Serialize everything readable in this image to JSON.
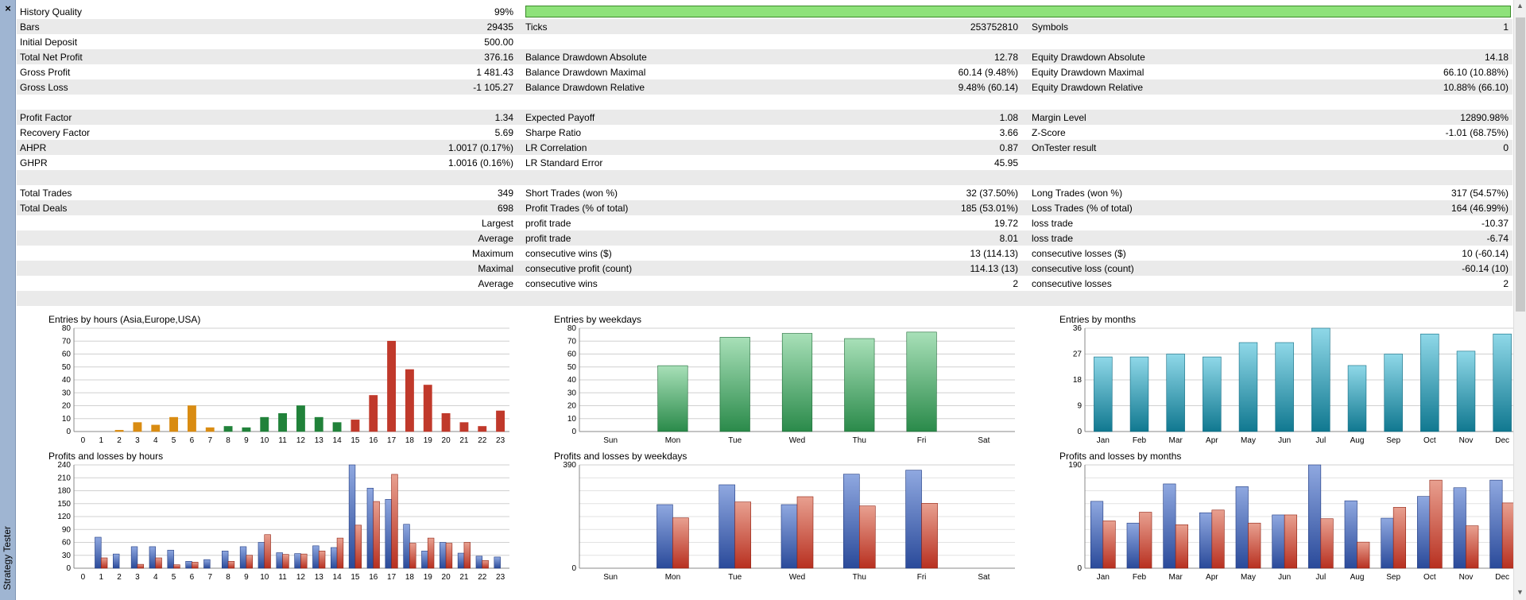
{
  "window": {
    "side_label": "Strategy Tester",
    "close_glyph": "×"
  },
  "stats": {
    "history_quality": {
      "label": "History Quality",
      "value": "99%",
      "percent": 99
    },
    "rows": [
      {
        "y": 24,
        "g": 1,
        "c": [
          [
            "Bars",
            "29435"
          ],
          [
            "Ticks",
            "253752810"
          ],
          [
            "Symbols",
            "1"
          ]
        ]
      },
      {
        "y": 43,
        "g": 0,
        "c": [
          [
            "Initial Deposit",
            "500.00"
          ],
          [
            "",
            ""
          ],
          [
            "",
            ""
          ]
        ]
      },
      {
        "y": 62,
        "g": 1,
        "c": [
          [
            "Total Net Profit",
            "376.16"
          ],
          [
            "Balance Drawdown Absolute",
            "12.78"
          ],
          [
            "Equity Drawdown Absolute",
            "14.18"
          ]
        ]
      },
      {
        "y": 81,
        "g": 0,
        "c": [
          [
            "Gross Profit",
            "1 481.43"
          ],
          [
            "Balance Drawdown Maximal",
            "60.14 (9.48%)"
          ],
          [
            "Equity Drawdown Maximal",
            "66.10 (10.88%)"
          ]
        ]
      },
      {
        "y": 100,
        "g": 1,
        "c": [
          [
            "Gross Loss",
            "-1 105.27"
          ],
          [
            "Balance Drawdown Relative",
            "9.48% (60.14)"
          ],
          [
            "Equity Drawdown Relative",
            "10.88% (66.10)"
          ]
        ]
      },
      {
        "y": 119,
        "g": 0,
        "c": [
          [
            "",
            ""
          ],
          [
            "",
            ""
          ],
          [
            "",
            ""
          ]
        ]
      },
      {
        "y": 138,
        "g": 1,
        "c": [
          [
            "Profit Factor",
            "1.34"
          ],
          [
            "Expected Payoff",
            "1.08"
          ],
          [
            "Margin Level",
            "12890.98%"
          ]
        ]
      },
      {
        "y": 157,
        "g": 0,
        "c": [
          [
            "Recovery Factor",
            "5.69"
          ],
          [
            "Sharpe Ratio",
            "3.66"
          ],
          [
            "Z-Score",
            "-1.01 (68.75%)"
          ]
        ]
      },
      {
        "y": 176,
        "g": 1,
        "c": [
          [
            "AHPR",
            "1.0017 (0.17%)"
          ],
          [
            "LR Correlation",
            "0.87"
          ],
          [
            "OnTester result",
            "0"
          ]
        ]
      },
      {
        "y": 195,
        "g": 0,
        "c": [
          [
            "GHPR",
            "1.0016 (0.16%)"
          ],
          [
            "LR Standard Error",
            "45.95"
          ],
          [
            "",
            ""
          ]
        ]
      },
      {
        "y": 214,
        "g": 1,
        "c": [
          [
            "",
            ""
          ],
          [
            "",
            ""
          ],
          [
            "",
            ""
          ]
        ]
      },
      {
        "y": 233,
        "g": 0,
        "c": [
          [
            "Total Trades",
            "349"
          ],
          [
            "Short Trades (won %)",
            "32 (37.50%)"
          ],
          [
            "Long Trades (won %)",
            "317 (54.57%)"
          ]
        ]
      },
      {
        "y": 252,
        "g": 1,
        "c": [
          [
            "Total Deals",
            "698"
          ],
          [
            "Profit Trades (% of total)",
            "185 (53.01%)"
          ],
          [
            "Loss Trades (% of total)",
            "164 (46.99%)"
          ]
        ]
      },
      {
        "y": 271,
        "g": 0,
        "r": "Largest",
        "c": [
          [
            "",
            ""
          ],
          [
            "profit trade",
            "19.72"
          ],
          [
            "loss trade",
            "-10.37"
          ]
        ]
      },
      {
        "y": 290,
        "g": 1,
        "r": "Average",
        "c": [
          [
            "",
            ""
          ],
          [
            "profit trade",
            "8.01"
          ],
          [
            "loss trade",
            "-6.74"
          ]
        ]
      },
      {
        "y": 309,
        "g": 0,
        "r": "Maximum",
        "c": [
          [
            "",
            ""
          ],
          [
            "consecutive wins ($)",
            "13 (114.13)"
          ],
          [
            "consecutive losses ($)",
            "10 (-60.14)"
          ]
        ]
      },
      {
        "y": 328,
        "g": 1,
        "r": "Maximal",
        "c": [
          [
            "",
            ""
          ],
          [
            "consecutive profit (count)",
            "114.13 (13)"
          ],
          [
            "consecutive loss (count)",
            "-60.14 (10)"
          ]
        ]
      },
      {
        "y": 347,
        "g": 0,
        "r": "Average",
        "c": [
          [
            "",
            ""
          ],
          [
            "consecutive wins",
            "2"
          ],
          [
            "consecutive losses",
            "2"
          ]
        ]
      },
      {
        "y": 366,
        "g": 1,
        "c": [
          [
            "",
            ""
          ],
          [
            "",
            ""
          ],
          [
            "",
            ""
          ]
        ]
      }
    ]
  },
  "colors": {
    "orange": "#d98c12",
    "green": "#21823a",
    "red": "#c0392b",
    "blue": "#3a5aa8",
    "teal": "#1b8ca6",
    "lightgreen": "#3aa661"
  },
  "chart_data": [
    {
      "name": "hours-entries",
      "type": "bar",
      "title": "Entries by hours (Asia,Europe,USA)",
      "categories": [
        "0",
        "1",
        "2",
        "3",
        "4",
        "5",
        "6",
        "7",
        "8",
        "9",
        "10",
        "11",
        "12",
        "13",
        "14",
        "15",
        "16",
        "17",
        "18",
        "19",
        "20",
        "21",
        "22",
        "23"
      ],
      "values": [
        0,
        0,
        1,
        7,
        5,
        11,
        20,
        3,
        4,
        3,
        11,
        14,
        20,
        11,
        7,
        9,
        28,
        70,
        48,
        36,
        14,
        7,
        4,
        16
      ],
      "yticks": [
        "0",
        "10",
        "20",
        "30",
        "40",
        "50",
        "60",
        "70",
        "80"
      ],
      "ylim": [
        0,
        80
      ],
      "color_by_group": [
        "orange",
        "orange",
        "orange",
        "orange",
        "orange",
        "orange",
        "orange",
        "orange",
        "green",
        "green",
        "green",
        "green",
        "green",
        "green",
        "green",
        "red",
        "red",
        "red",
        "red",
        "red",
        "red",
        "red",
        "red",
        "red"
      ]
    },
    {
      "name": "weekday-entries",
      "type": "bar",
      "title": "Entries by weekdays",
      "categories": [
        "Sun",
        "Mon",
        "Tue",
        "Wed",
        "Thu",
        "Fri",
        "Sat"
      ],
      "values": [
        0,
        51,
        73,
        76,
        72,
        77,
        0
      ],
      "yticks": [
        "0",
        "10",
        "20",
        "30",
        "40",
        "50",
        "60",
        "70",
        "80"
      ],
      "ylim": [
        0,
        80
      ]
    },
    {
      "name": "month-entries",
      "type": "bar",
      "title": "Entries by months",
      "categories": [
        "Jan",
        "Feb",
        "Mar",
        "Apr",
        "May",
        "Jun",
        "Jul",
        "Aug",
        "Sep",
        "Oct",
        "Nov",
        "Dec"
      ],
      "values": [
        26,
        26,
        27,
        26,
        31,
        31,
        36,
        23,
        27,
        34,
        28,
        34
      ],
      "yticks": [
        "0",
        "9",
        "18",
        "27",
        "36"
      ],
      "ylim": [
        0,
        36
      ]
    },
    {
      "name": "hours-pl",
      "type": "bar",
      "title": "Profits and losses by hours",
      "categories": [
        "0",
        "1",
        "2",
        "3",
        "4",
        "5",
        "6",
        "7",
        "8",
        "9",
        "10",
        "11",
        "12",
        "13",
        "14",
        "15",
        "16",
        "17",
        "18",
        "19",
        "20",
        "21",
        "22",
        "23"
      ],
      "series": [
        {
          "name": "profit",
          "values": [
            0,
            72,
            33,
            50,
            50,
            42,
            16,
            20,
            40,
            50,
            60,
            36,
            34,
            52,
            48,
            240,
            186,
            160,
            102,
            40,
            60,
            35,
            28,
            26
          ]
        },
        {
          "name": "loss",
          "values": [
            0,
            24,
            0,
            9,
            24,
            8,
            14,
            0,
            16,
            30,
            78,
            32,
            33,
            40,
            70,
            100,
            155,
            218,
            58,
            70,
            58,
            60,
            18,
            0
          ]
        }
      ],
      "yticks": [
        "0",
        "30",
        "60",
        "90",
        "120",
        "150",
        "180",
        "210",
        "240"
      ],
      "ylim": [
        0,
        240
      ]
    },
    {
      "name": "weekday-pl",
      "type": "bar",
      "title": "Profits and losses by weekdays",
      "categories": [
        "Sun",
        "Mon",
        "Tue",
        "Wed",
        "Thu",
        "Fri",
        "Sat"
      ],
      "series": [
        {
          "name": "profit",
          "values": [
            0,
            240,
            315,
            240,
            355,
            370,
            0
          ]
        },
        {
          "name": "loss",
          "values": [
            0,
            190,
            250,
            270,
            235,
            245,
            0
          ]
        }
      ],
      "yticks": [
        "0",
        "390"
      ],
      "ylim": [
        0,
        390
      ]
    },
    {
      "name": "month-pl",
      "type": "bar",
      "title": "Profits and losses by months",
      "categories": [
        "Jan",
        "Feb",
        "Mar",
        "Apr",
        "May",
        "Jun",
        "Jul",
        "Aug",
        "Sep",
        "Oct",
        "Nov",
        "Dec"
      ],
      "series": [
        {
          "name": "profit",
          "values": [
            123,
            83,
            155,
            102,
            150,
            98,
            190,
            124,
            92,
            132,
            148,
            162
          ]
        },
        {
          "name": "loss",
          "values": [
            87,
            103,
            80,
            107,
            83,
            98,
            91,
            48,
            112,
            162,
            78,
            120
          ]
        }
      ],
      "yticks": [
        "0",
        "190"
      ],
      "ylim": [
        0,
        190
      ]
    }
  ]
}
